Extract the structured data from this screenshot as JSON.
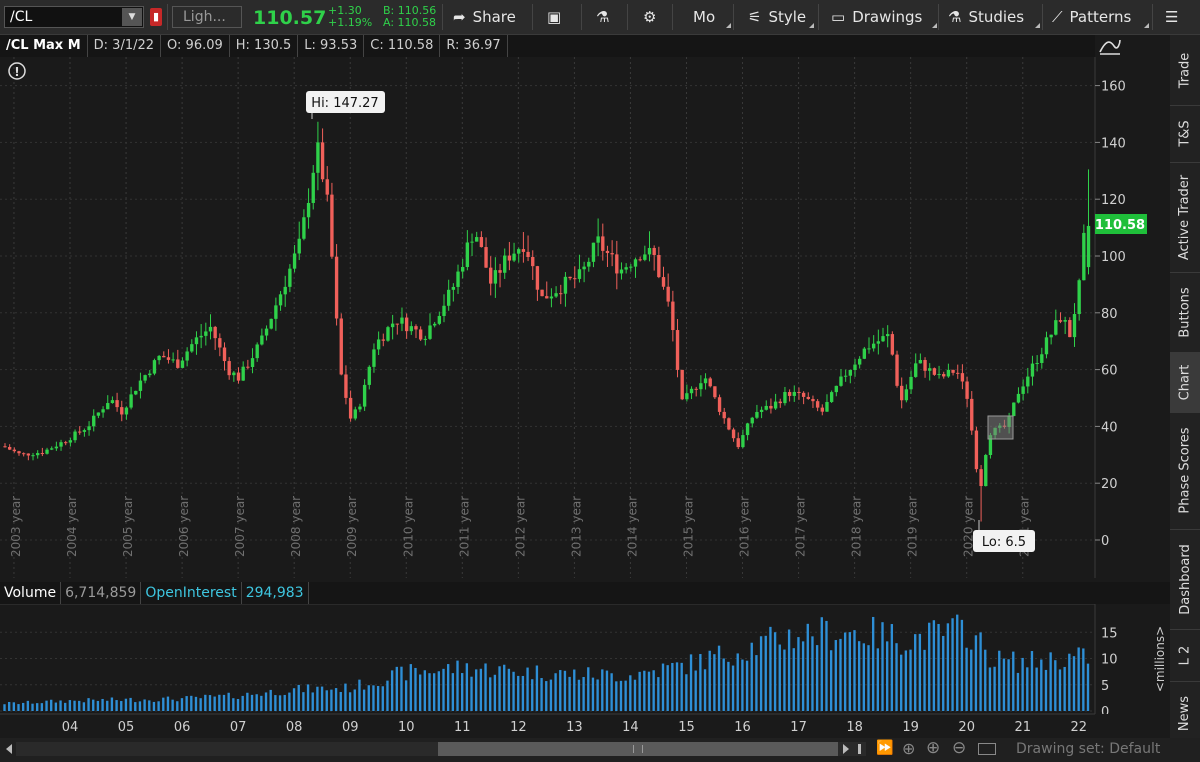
{
  "toolbar": {
    "symbol": "/CL",
    "description": "Ligh...",
    "last_price": "110.57",
    "change": "+1.30",
    "change_pct": "+1.19%",
    "bid": "B: 110.56",
    "ask": "A: 110.58",
    "share_label": "Share",
    "mo_label": "Mo",
    "style_label": "Style",
    "drawings_label": "Drawings",
    "studies_label": "Studies",
    "patterns_label": "Patterns"
  },
  "header": {
    "title": "/CL Max M",
    "date": "D: 3/1/22",
    "open": "O: 96.09",
    "high": "H: 130.5",
    "low": "L: 93.53",
    "close": "C: 110.58",
    "range": "R: 36.97"
  },
  "price_badge": "110.58",
  "annotations": {
    "hi": "Hi: 147.27",
    "lo": "Lo: 6.5"
  },
  "volume_header": {
    "volume_label": "Volume",
    "volume_value": "6,714,859",
    "oi_label": "OpenInterest",
    "oi_value": "294,983"
  },
  "volume_unit": "<millions>",
  "side_tabs": [
    "Trade",
    "T&S",
    "Active Trader",
    "Buttons",
    "Chart",
    "Phase Scores",
    "Dashboard",
    "L 2",
    "News"
  ],
  "drawing_set": "Drawing set: Default",
  "colors": {
    "up": "#2fd14a",
    "down": "#f0605a",
    "volume": "#2e8fd6",
    "badge": "#1fbf3a"
  },
  "chart_data": {
    "type": "candlestick",
    "interval": "monthly",
    "price_axis_ticks": [
      0,
      20,
      40,
      60,
      80,
      100,
      120,
      140,
      160
    ],
    "year_labels": [
      "2003 year",
      "2004 year",
      "2005 year",
      "2006 year",
      "2007 year",
      "2008 year",
      "2009 year",
      "2010 year",
      "2011 year",
      "2012 year",
      "2013 year",
      "2014 year",
      "2015 year",
      "2016 year",
      "2017 year",
      "2018 year",
      "2019 year",
      "2020 year",
      "2021 year"
    ],
    "time_axis_labels": [
      "04",
      "05",
      "06",
      "07",
      "08",
      "09",
      "10",
      "11",
      "12",
      "13",
      "14",
      "15",
      "16",
      "17",
      "18",
      "19",
      "20",
      "21",
      "22"
    ],
    "volume_axis_ticks": [
      0,
      5,
      10,
      15
    ],
    "price_path": [
      [
        2002.9,
        33
      ],
      [
        2003.2,
        30
      ],
      [
        2003.6,
        31
      ],
      [
        2004.0,
        35
      ],
      [
        2004.4,
        40
      ],
      [
        2004.8,
        50
      ],
      [
        2005.0,
        45
      ],
      [
        2005.3,
        55
      ],
      [
        2005.7,
        65
      ],
      [
        2006.0,
        62
      ],
      [
        2006.3,
        70
      ],
      [
        2006.6,
        75
      ],
      [
        2006.9,
        60
      ],
      [
        2007.1,
        57
      ],
      [
        2007.5,
        70
      ],
      [
        2007.9,
        90
      ],
      [
        2008.2,
        105
      ],
      [
        2008.5,
        140
      ],
      [
        2008.7,
        115
      ],
      [
        2008.9,
        60
      ],
      [
        2009.1,
        42
      ],
      [
        2009.3,
        50
      ],
      [
        2009.5,
        68
      ],
      [
        2009.9,
        78
      ],
      [
        2010.4,
        72
      ],
      [
        2010.9,
        88
      ],
      [
        2011.3,
        110
      ],
      [
        2011.6,
        90
      ],
      [
        2011.9,
        100
      ],
      [
        2012.2,
        105
      ],
      [
        2012.5,
        85
      ],
      [
        2012.9,
        90
      ],
      [
        2013.2,
        93
      ],
      [
        2013.5,
        105
      ],
      [
        2013.9,
        95
      ],
      [
        2014.3,
        102
      ],
      [
        2014.5,
        100
      ],
      [
        2014.8,
        80
      ],
      [
        2015.0,
        48
      ],
      [
        2015.4,
        58
      ],
      [
        2015.7,
        45
      ],
      [
        2016.0,
        33
      ],
      [
        2016.3,
        45
      ],
      [
        2016.6,
        47
      ],
      [
        2016.9,
        52
      ],
      [
        2017.2,
        50
      ],
      [
        2017.5,
        45
      ],
      [
        2017.9,
        58
      ],
      [
        2018.3,
        68
      ],
      [
        2018.7,
        72
      ],
      [
        2018.9,
        48
      ],
      [
        2019.2,
        63
      ],
      [
        2019.6,
        57
      ],
      [
        2019.9,
        60
      ],
      [
        2020.1,
        50
      ],
      [
        2020.3,
        19
      ],
      [
        2020.5,
        38
      ],
      [
        2020.8,
        40
      ],
      [
        2021.0,
        52
      ],
      [
        2021.4,
        66
      ],
      [
        2021.8,
        80
      ],
      [
        2021.9,
        70
      ],
      [
        2022.1,
        90
      ],
      [
        2022.2,
        110.58
      ]
    ],
    "high": 147.27,
    "low": 6.5,
    "last": 110.58,
    "volume_path": [
      [
        2003.0,
        1.5
      ],
      [
        2004.0,
        2.0
      ],
      [
        2005.0,
        2.2
      ],
      [
        2006.0,
        2.4
      ],
      [
        2007.0,
        3.0
      ],
      [
        2008.0,
        4.2
      ],
      [
        2009.0,
        4.5
      ],
      [
        2010.0,
        7.5
      ],
      [
        2011.0,
        8.5
      ],
      [
        2012.0,
        7.8
      ],
      [
        2013.0,
        7.2
      ],
      [
        2014.0,
        7.0
      ],
      [
        2015.0,
        9.0
      ],
      [
        2016.0,
        12.0
      ],
      [
        2017.0,
        15.0
      ],
      [
        2018.0,
        15.5
      ],
      [
        2019.0,
        14.0
      ],
      [
        2020.0,
        16.0
      ],
      [
        2020.5,
        10.0
      ],
      [
        2021.0,
        9.5
      ],
      [
        2022.0,
        10.5
      ]
    ]
  }
}
